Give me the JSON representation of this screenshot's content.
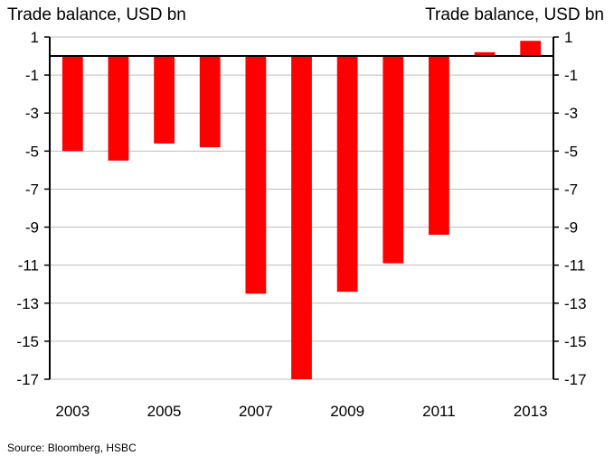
{
  "chart_data": {
    "type": "bar",
    "title": "",
    "y_label_left": "Trade balance, USD bn",
    "y_label_right": "Trade balance, USD bn",
    "categories": [
      "2003",
      "2004",
      "2005",
      "2006",
      "2007",
      "2008",
      "2009",
      "2010",
      "2011",
      "2012",
      "2013"
    ],
    "x_tick_labels": [
      "2003",
      "",
      "2005",
      "",
      "2007",
      "",
      "2009",
      "",
      "2011",
      "",
      "2013"
    ],
    "values": [
      -5.0,
      -5.5,
      -4.6,
      -4.8,
      -12.5,
      -17.0,
      -12.4,
      -10.9,
      -9.4,
      0.2,
      0.8
    ],
    "ylim": [
      -17,
      1
    ],
    "y_ticks": [
      1,
      -1,
      -3,
      -5,
      -7,
      -9,
      -11,
      -13,
      -15,
      -17
    ],
    "grid": true,
    "bar_color": "#ff0000",
    "source": "Source: Bloomberg, HSBC"
  }
}
